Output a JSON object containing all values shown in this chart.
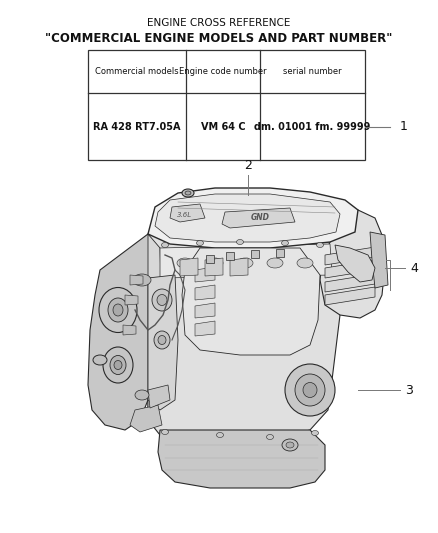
{
  "title_line1": "ENGINE CROSS REFERENCE",
  "title_line2": "\"COMMERCIAL ENGINE MODELS AND PART NUMBER\"",
  "table_headers": [
    "Commercial models",
    "Engine code number",
    "serial number"
  ],
  "table_row": [
    "RA 428 RT7.05A",
    "VM 64 C",
    "dm. 01001 fm. 99999"
  ],
  "callout_numbers": [
    "1",
    "2",
    "3",
    "4"
  ],
  "bg_color": "#ffffff",
  "text_color": "#111111",
  "table_border_color": "#333333",
  "fig_width": 4.38,
  "fig_height": 5.33,
  "dpi": 100
}
